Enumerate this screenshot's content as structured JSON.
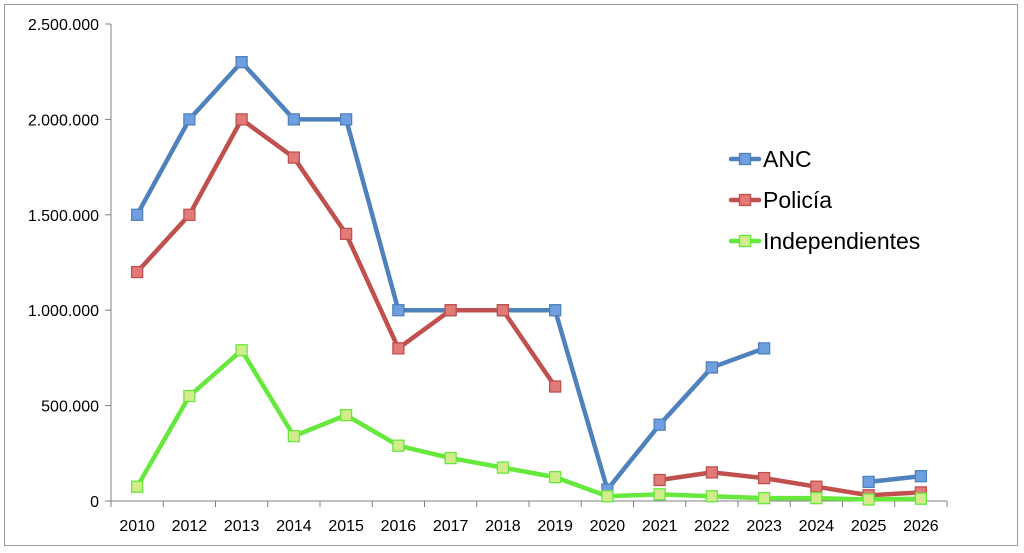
{
  "chart_data": {
    "type": "line",
    "categories": [
      "2010",
      "2012",
      "2013",
      "2014",
      "2015",
      "2016",
      "2017",
      "2018",
      "2019",
      "2020",
      "2021",
      "2022",
      "2023",
      "2024",
      "2025",
      "2026"
    ],
    "ylim": [
      0,
      2500000
    ],
    "yticks": [
      0,
      500000,
      1000000,
      1500000,
      2000000,
      2500000
    ],
    "ytick_labels": [
      "0",
      "500.000",
      "1.000.000",
      "1.500.000",
      "2.000.000",
      "2.500.000"
    ],
    "grid": false,
    "legend": "right",
    "series": [
      {
        "name": "ANC",
        "color": "#4f81bd",
        "marker_color": "#6f9fe0",
        "values": [
          1500000,
          2000000,
          2300000,
          2000000,
          2000000,
          1000000,
          1000000,
          1000000,
          1000000,
          60000,
          400000,
          700000,
          800000,
          null,
          100000,
          130000
        ]
      },
      {
        "name": "Policía",
        "color": "#c0504d",
        "marker_color": "#e07b78",
        "values": [
          1200000,
          1500000,
          2000000,
          1800000,
          1400000,
          800000,
          1000000,
          1000000,
          600000,
          null,
          110000,
          150000,
          120000,
          75000,
          30000,
          45000
        ]
      },
      {
        "name": "Independientes",
        "color": "#66e83c",
        "marker_color": "#d2ec8c",
        "values": [
          75000,
          550000,
          790000,
          340000,
          450000,
          290000,
          225000,
          175000,
          125000,
          25000,
          35000,
          25000,
          15000,
          15000,
          8000,
          12000
        ]
      }
    ]
  }
}
